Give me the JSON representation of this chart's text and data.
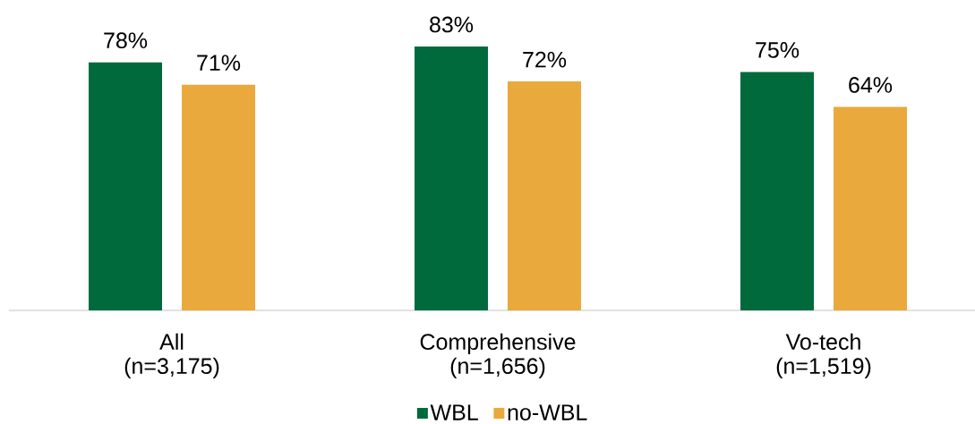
{
  "chart_data": {
    "type": "bar",
    "categories": [
      "All (n=3,175)",
      "Comprehensive (n=1,656)",
      "Vo-tech (n=1,519)"
    ],
    "series": [
      {
        "name": "WBL",
        "color": "#006a3c",
        "values": [
          78,
          83,
          75
        ],
        "value_labels": [
          "78%",
          "83%",
          "75%"
        ]
      },
      {
        "name": "no-WBL",
        "color": "#e9a93c",
        "values": [
          71,
          72,
          64
        ],
        "value_labels": [
          "71%",
          "72%",
          "64%"
        ]
      }
    ],
    "legend": "bottom",
    "tick_labels": "x"
  }
}
